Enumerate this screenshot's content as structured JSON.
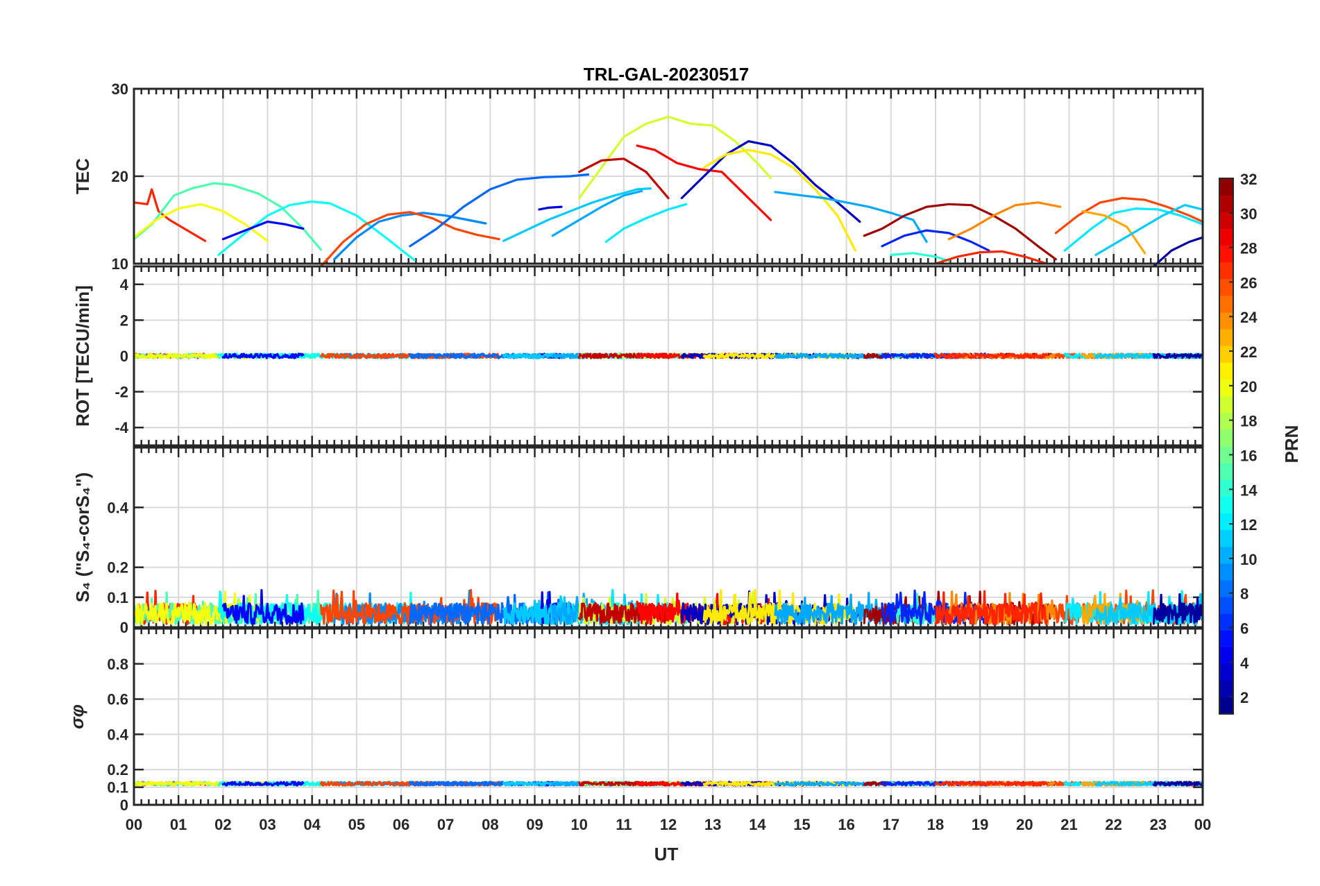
{
  "chart_data": {
    "type": "line",
    "title": "TRL-GAL-20230517",
    "xlabel": "UT",
    "x_tick_labels": [
      "00",
      "01",
      "02",
      "03",
      "04",
      "05",
      "06",
      "07",
      "08",
      "09",
      "10",
      "11",
      "12",
      "13",
      "14",
      "15",
      "16",
      "17",
      "18",
      "19",
      "20",
      "21",
      "22",
      "23",
      "00"
    ],
    "xlim": [
      0,
      24
    ],
    "grid": true,
    "colorbar": {
      "label": "PRN",
      "colormap": "jet",
      "range": [
        1,
        32
      ],
      "tick_labels": [
        "2",
        "4",
        "6",
        "8",
        "10",
        "12",
        "14",
        "16",
        "18",
        "20",
        "22",
        "24",
        "26",
        "28",
        "30",
        "32"
      ],
      "placement": "right"
    },
    "panels": [
      {
        "ylabel": "TEC",
        "ylim": [
          10,
          30
        ],
        "y_tick_labels": [
          "10",
          "20",
          "30"
        ],
        "series": [
          {
            "prn": 27,
            "x": [
              0,
              0.3,
              0.4,
              0.55,
              0.8,
              1.2,
              1.6
            ],
            "y": [
              17.0,
              16.8,
              18.5,
              16.0,
              15.0,
              13.8,
              12.6
            ]
          },
          {
            "prn": 15,
            "x": [
              0,
              0.4,
              0.9,
              1.3,
              1.8,
              2.2,
              2.8,
              3.3,
              3.8,
              4.2
            ],
            "y": [
              12.8,
              14.5,
              17.8,
              18.6,
              19.2,
              19.0,
              18.0,
              16.5,
              14.0,
              11.6
            ]
          },
          {
            "prn": 20,
            "x": [
              0,
              0.5,
              1.0,
              1.5,
              2.0,
              2.5,
              3.0
            ],
            "y": [
              13.0,
              15.0,
              16.3,
              16.8,
              16.0,
              14.5,
              12.6
            ]
          },
          {
            "prn": 13,
            "x": [
              1.9,
              2.5,
              3.0,
              3.5,
              4.0,
              4.4,
              5.0,
              5.6,
              6.3
            ],
            "y": [
              11.0,
              13.5,
              15.5,
              16.7,
              17.1,
              16.9,
              15.5,
              13.2,
              10.4
            ]
          },
          {
            "prn": 5,
            "x": [
              2.0,
              2.5,
              3.0,
              3.4,
              3.8
            ],
            "y": [
              12.8,
              13.8,
              14.8,
              14.5,
              14.0
            ]
          },
          {
            "prn": 9,
            "x": [
              4.5,
              5.0,
              5.5,
              6.0,
              6.5,
              7.0,
              7.5,
              7.9
            ],
            "y": [
              10.5,
              13.0,
              14.8,
              15.5,
              15.8,
              15.5,
              15.0,
              14.6
            ]
          },
          {
            "prn": 26,
            "x": [
              4.2,
              4.7,
              5.2,
              5.7,
              6.2,
              6.7,
              7.2,
              7.7,
              8.2
            ],
            "y": [
              9.5,
              12.5,
              14.5,
              15.6,
              15.9,
              15.2,
              14.0,
              13.3,
              12.8
            ]
          },
          {
            "prn": 8,
            "x": [
              6.2,
              6.8,
              7.4,
              8.0,
              8.6,
              9.2,
              9.8,
              10.2
            ],
            "y": [
              12.0,
              14.0,
              16.5,
              18.5,
              19.6,
              19.9,
              20.0,
              20.2
            ]
          },
          {
            "prn": 4,
            "x": [
              9.1,
              9.3,
              9.6
            ],
            "y": [
              16.2,
              16.4,
              16.5
            ]
          },
          {
            "prn": 11,
            "x": [
              8.3,
              8.8,
              9.3,
              9.8,
              10.3,
              10.8,
              11.3,
              11.6
            ],
            "y": [
              12.6,
              13.8,
              15.0,
              16.0,
              17.0,
              17.8,
              18.5,
              18.6
            ]
          },
          {
            "prn": 10,
            "x": [
              9.4,
              10.0,
              10.5,
              11.0,
              11.4
            ],
            "y": [
              13.2,
              15.0,
              16.5,
              17.8,
              18.3
            ]
          },
          {
            "prn": 12,
            "x": [
              10.6,
              11.0,
              11.5,
              12.0,
              12.4
            ],
            "y": [
              12.5,
              14.0,
              15.2,
              16.2,
              16.8
            ]
          },
          {
            "prn": 19,
            "x": [
              10.0,
              10.5,
              11.0,
              11.5,
              12.0,
              12.5,
              13.0,
              13.5,
              14.0,
              14.3
            ],
            "y": [
              17.5,
              21.0,
              24.5,
              26.0,
              26.8,
              26.0,
              25.8,
              24.0,
              21.5,
              19.8
            ]
          },
          {
            "prn": 30,
            "x": [
              10.0,
              10.5,
              11.0,
              11.5,
              12.0
            ],
            "y": [
              20.5,
              21.8,
              22.0,
              20.5,
              17.5
            ]
          },
          {
            "prn": 28,
            "x": [
              11.3,
              11.7,
              12.2,
              12.7,
              13.2,
              13.7,
              14.3
            ],
            "y": [
              23.5,
              23.0,
              21.5,
              20.8,
              20.5,
              18.0,
              15.0
            ]
          },
          {
            "prn": 3,
            "x": [
              12.3,
              12.8,
              13.3,
              13.8,
              14.3,
              14.8,
              15.3,
              15.8,
              16.3
            ],
            "y": [
              17.5,
              20.0,
              22.5,
              24.0,
              23.5,
              21.5,
              19.0,
              17.0,
              14.8
            ]
          },
          {
            "prn": 21,
            "x": [
              12.8,
              13.3,
              13.8,
              14.3,
              14.8,
              15.3,
              15.8,
              16.2
            ],
            "y": [
              21.0,
              22.5,
              23.0,
              22.5,
              21.0,
              18.5,
              15.5,
              11.5
            ]
          },
          {
            "prn": 10,
            "x": [
              14.4,
              15.0,
              15.5,
              16.0,
              16.5,
              17.0,
              17.5,
              17.8
            ],
            "y": [
              18.2,
              17.8,
              17.5,
              17.0,
              16.5,
              15.8,
              15.0,
              12.5
            ]
          },
          {
            "prn": 31,
            "x": [
              16.4,
              16.8,
              17.3,
              17.8,
              18.3,
              18.8,
              19.3,
              19.8,
              20.3,
              20.7
            ],
            "y": [
              13.2,
              14.0,
              15.5,
              16.5,
              16.8,
              16.7,
              15.5,
              14.0,
              12.0,
              10.5
            ]
          },
          {
            "prn": 14,
            "x": [
              17.0,
              17.5,
              18.0,
              18.3
            ],
            "y": [
              11.0,
              11.2,
              10.8,
              10.3
            ]
          },
          {
            "prn": 6,
            "x": [
              16.8,
              17.3,
              17.8,
              18.3,
              18.8,
              19.2
            ],
            "y": [
              12.0,
              13.2,
              13.8,
              13.5,
              12.5,
              11.5
            ]
          },
          {
            "prn": 24,
            "x": [
              18.3,
              18.8,
              19.3,
              19.8,
              20.3,
              20.8
            ],
            "y": [
              12.8,
              14.0,
              15.5,
              16.7,
              17.0,
              16.5
            ]
          },
          {
            "prn": 27,
            "x": [
              18.0,
              18.5,
              19.0,
              19.5,
              20.0,
              20.5
            ],
            "y": [
              10.0,
              10.8,
              11.3,
              11.4,
              10.8,
              10.0
            ]
          },
          {
            "prn": 26,
            "x": [
              20.7,
              21.2,
              21.7,
              22.2,
              22.7,
              23.2,
              23.7,
              24.0
            ],
            "y": [
              13.5,
              15.5,
              17.0,
              17.5,
              17.3,
              16.5,
              15.5,
              14.8
            ]
          },
          {
            "prn": 12,
            "x": [
              20.9,
              21.5,
              22.0,
              22.5,
              23.0,
              23.5,
              24.0
            ],
            "y": [
              11.5,
              14.0,
              15.8,
              16.3,
              16.2,
              15.5,
              14.5
            ]
          },
          {
            "prn": 23,
            "x": [
              21.3,
              21.8,
              22.3,
              22.7
            ],
            "y": [
              16.0,
              15.5,
              14.2,
              11.2
            ]
          },
          {
            "prn": 11,
            "x": [
              21.6,
              22.1,
              22.6,
              23.1,
              23.6,
              24.0
            ],
            "y": [
              11.0,
              12.5,
              14.0,
              15.5,
              16.7,
              16.2
            ]
          },
          {
            "prn": 2,
            "x": [
              22.9,
              23.3,
              23.7,
              24.0
            ],
            "y": [
              9.8,
              11.5,
              12.5,
              13.0
            ]
          }
        ]
      },
      {
        "ylabel": "ROT [TECU/min]",
        "ylim": [
          -5,
          5
        ],
        "y_tick_labels": [
          "-4",
          "-2",
          "0",
          "2",
          "4"
        ],
        "baseline": 0
      },
      {
        "ylabel": "S₄ (\"S₄-corS₄\")",
        "ylim": [
          0,
          0.6
        ],
        "y_tick_labels": [
          "0",
          "0.1",
          "0.2",
          "0.4"
        ],
        "baseline": 0.045
      },
      {
        "ylabel": "σφ",
        "ylim": [
          0,
          1
        ],
        "y_tick_labels": [
          "0",
          "0.1",
          "0.2",
          "0.4",
          "0.6",
          "0.8"
        ],
        "baseline": 0.12
      }
    ]
  }
}
